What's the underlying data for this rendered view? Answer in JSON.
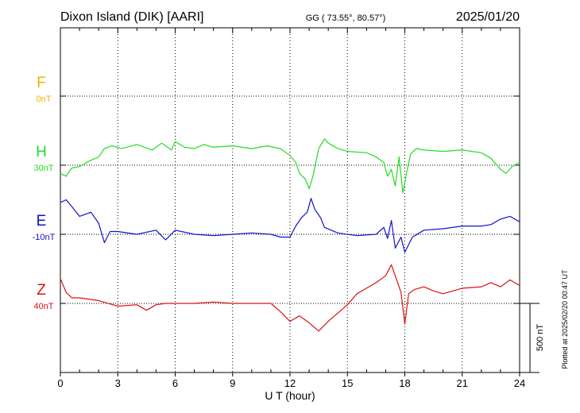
{
  "header": {
    "station": "Dixon Island (DIK)  [AARI]",
    "coords": "GG ( 73.55°,  80.57°)",
    "date": "2025/01/20"
  },
  "plotted_note": "Plotted at 2025/02/20 00:47 UT",
  "colors": {
    "F": "#f2b200",
    "H": "#22dd22",
    "E": "#1111cc",
    "Z": "#dd1111"
  },
  "chart_data": {
    "type": "line",
    "xlabel": "U T (hour)",
    "xlim": [
      0,
      24
    ],
    "xticks": [
      "0",
      "3",
      "6",
      "9",
      "12",
      "15",
      "18",
      "21",
      "24"
    ],
    "scale_bar": {
      "label": "500 nT",
      "value_nT": 500
    },
    "series": [
      {
        "name": "F",
        "baseline_label": "0nT",
        "color": "#f2b200",
        "x": [],
        "values": []
      },
      {
        "name": "H",
        "baseline_label": "30nT",
        "color": "#22dd22",
        "x": [
          0,
          0.3,
          0.6,
          1.0,
          1.5,
          2.0,
          2.3,
          2.7,
          3.2,
          4.0,
          4.8,
          5.3,
          5.8,
          6.0,
          6.5,
          7.0,
          7.5,
          8.0,
          9.0,
          10.0,
          10.8,
          11.5,
          12.0,
          12.3,
          12.5,
          12.8,
          13.0,
          13.2,
          13.5,
          13.8,
          14.0,
          14.5,
          15.0,
          16.0,
          16.5,
          16.9,
          17.1,
          17.3,
          17.5,
          17.7,
          17.9,
          18.1,
          18.3,
          18.6,
          19.0,
          20.0,
          21.0,
          22.0,
          22.5,
          23.0,
          23.3,
          23.6,
          24.0
        ],
        "values": [
          -60,
          -80,
          -20,
          -10,
          30,
          60,
          120,
          140,
          120,
          150,
          110,
          160,
          110,
          170,
          130,
          120,
          150,
          130,
          140,
          120,
          140,
          120,
          70,
          20,
          -60,
          -100,
          -170,
          -80,
          120,
          190,
          160,
          120,
          100,
          90,
          60,
          20,
          -80,
          -30,
          -150,
          60,
          -200,
          -50,
          80,
          120,
          110,
          100,
          110,
          90,
          50,
          -30,
          -60,
          -10,
          20
        ]
      },
      {
        "name": "E",
        "baseline_label": "-10nT",
        "color": "#1111cc",
        "x": [
          0,
          0.3,
          0.6,
          1.0,
          1.6,
          2.0,
          2.3,
          2.6,
          3.0,
          4.0,
          5.0,
          5.5,
          6.0,
          7.0,
          8.0,
          9.0,
          10.0,
          11.0,
          11.5,
          12.0,
          12.3,
          12.6,
          12.9,
          13.1,
          13.3,
          13.6,
          13.8,
          14.5,
          15.5,
          16.5,
          16.9,
          17.1,
          17.3,
          17.5,
          17.8,
          18.0,
          18.4,
          19.0,
          20.0,
          21.0,
          22.0,
          22.5,
          23.0,
          23.5,
          24.0
        ],
        "values": [
          230,
          250,
          200,
          130,
          160,
          80,
          -60,
          20,
          20,
          0,
          30,
          -40,
          30,
          0,
          -10,
          0,
          10,
          0,
          -20,
          -20,
          60,
          120,
          160,
          260,
          180,
          120,
          50,
          10,
          -10,
          0,
          50,
          -30,
          100,
          -100,
          -20,
          -130,
          -20,
          30,
          40,
          60,
          60,
          70,
          110,
          130,
          90
        ]
      },
      {
        "name": "Z",
        "baseline_label": "40nT",
        "color": "#dd1111",
        "x": [
          0,
          0.3,
          0.6,
          1.0,
          2.0,
          3.0,
          4.0,
          4.5,
          5.0,
          5.5,
          6.0,
          7.0,
          8.0,
          9.0,
          10.0,
          11.0,
          11.5,
          12.0,
          12.5,
          13.0,
          13.5,
          14.0,
          14.5,
          15.0,
          15.5,
          16.0,
          16.5,
          17.0,
          17.3,
          17.6,
          17.8,
          18.0,
          18.2,
          18.5,
          19.0,
          19.5,
          20.0,
          21.0,
          22.0,
          22.5,
          23.0,
          23.5,
          24.0
        ],
        "values": [
          180,
          80,
          40,
          40,
          20,
          -20,
          -10,
          -50,
          -10,
          0,
          0,
          0,
          10,
          0,
          0,
          0,
          -60,
          -130,
          -90,
          -140,
          -200,
          -130,
          -70,
          -10,
          70,
          110,
          150,
          200,
          280,
          160,
          80,
          -150,
          70,
          100,
          120,
          90,
          70,
          110,
          120,
          150,
          120,
          170,
          130
        ]
      }
    ]
  }
}
